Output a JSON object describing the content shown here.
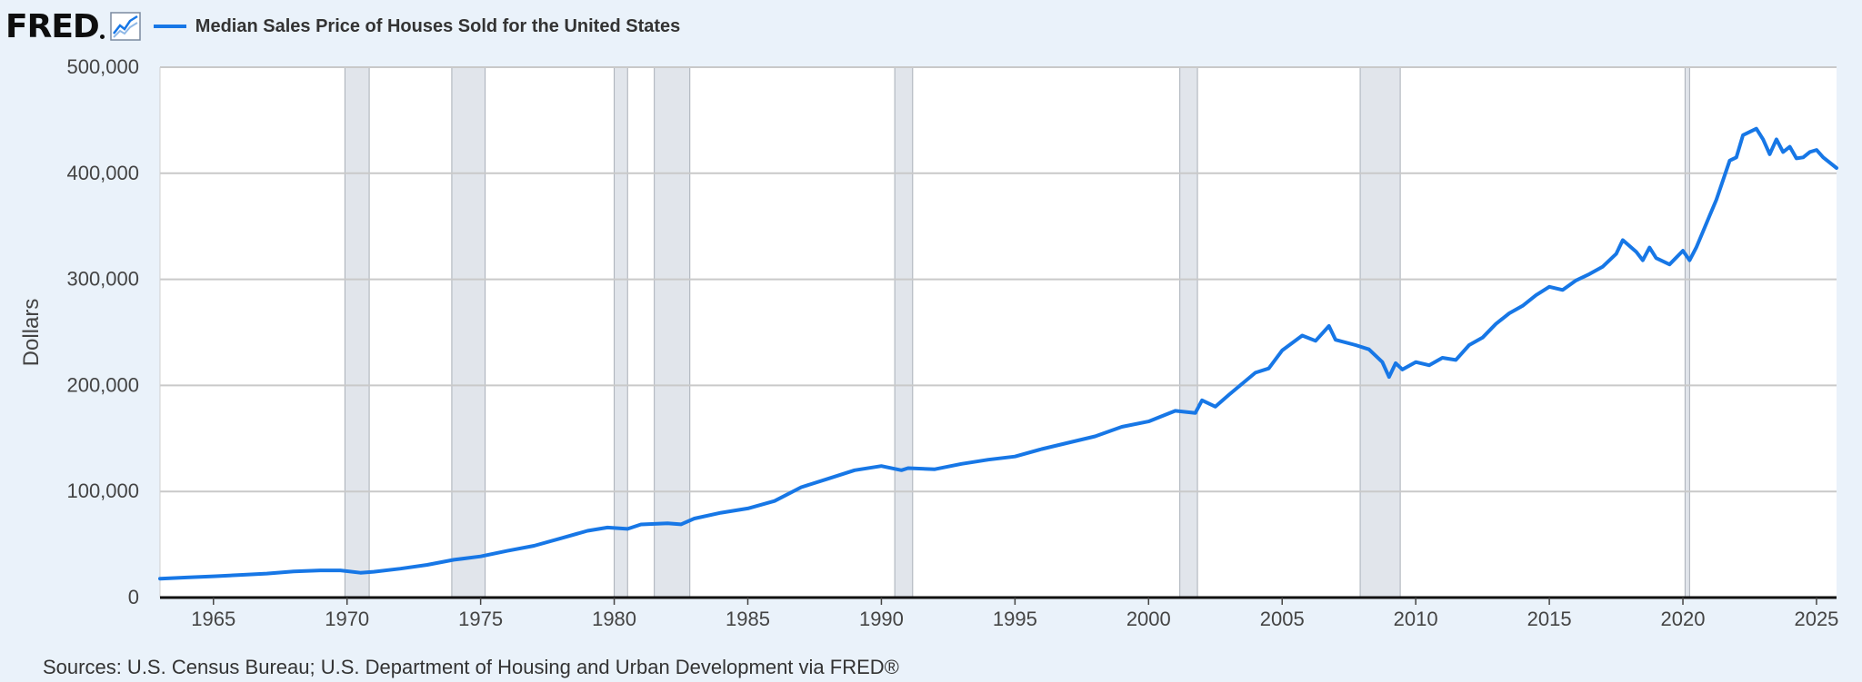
{
  "header": {
    "logo_text": "FRED",
    "logo_icon": "line-chart-icon"
  },
  "source_text": "Sources: U.S. Census Bureau; U.S. Department of Housing and Urban Development via FRED®",
  "colors": {
    "background": "#eaf2fa",
    "plot_background": "#ffffff",
    "series": "#1777e6",
    "recession": "#e1e5eb",
    "grid": "#c9c9c9",
    "text": "#333333"
  },
  "chart_data": {
    "type": "line",
    "title": "",
    "xlabel": "",
    "ylabel": "Dollars",
    "xlim": [
      1963.0,
      2025.75
    ],
    "ylim": [
      0,
      500000
    ],
    "grid": true,
    "legend": "top-left",
    "yticks": [
      0,
      100000,
      200000,
      300000,
      400000,
      500000
    ],
    "ytick_labels": [
      "0",
      "100,000",
      "200,000",
      "300,000",
      "400,000",
      "500,000"
    ],
    "xticks": [
      1965,
      1970,
      1975,
      1980,
      1985,
      1990,
      1995,
      2000,
      2005,
      2010,
      2015,
      2020,
      2025
    ],
    "xtick_labels": [
      "1965",
      "1970",
      "1975",
      "1980",
      "1985",
      "1990",
      "1995",
      "2000",
      "2005",
      "2010",
      "2015",
      "2020",
      "2025"
    ],
    "recessions": [
      [
        1969.92,
        1970.83
      ],
      [
        1973.92,
        1975.17
      ],
      [
        1980.0,
        1980.5
      ],
      [
        1981.5,
        1982.83
      ],
      [
        1990.5,
        1991.17
      ],
      [
        2001.17,
        2001.83
      ],
      [
        2007.92,
        2009.42
      ],
      [
        2020.08,
        2020.25
      ]
    ],
    "series": [
      {
        "name": "Median Sales Price of Houses Sold for the United States",
        "points": [
          [
            1963.0,
            17800
          ],
          [
            1964.0,
            18900
          ],
          [
            1965.0,
            20000
          ],
          [
            1966.0,
            21300
          ],
          [
            1967.0,
            22600
          ],
          [
            1968.0,
            24600
          ],
          [
            1969.0,
            25600
          ],
          [
            1969.75,
            25600
          ],
          [
            1970.5,
            23400
          ],
          [
            1971.0,
            24300
          ],
          [
            1972.0,
            27200
          ],
          [
            1973.0,
            30800
          ],
          [
            1974.0,
            35600
          ],
          [
            1975.0,
            38800
          ],
          [
            1976.0,
            44000
          ],
          [
            1977.0,
            48800
          ],
          [
            1978.0,
            55800
          ],
          [
            1979.0,
            62900
          ],
          [
            1979.75,
            66000
          ],
          [
            1980.5,
            64700
          ],
          [
            1981.0,
            68900
          ],
          [
            1982.0,
            70000
          ],
          [
            1982.5,
            69000
          ],
          [
            1983.0,
            74500
          ],
          [
            1984.0,
            80000
          ],
          [
            1985.0,
            84000
          ],
          [
            1986.0,
            91000
          ],
          [
            1987.0,
            104000
          ],
          [
            1988.0,
            112000
          ],
          [
            1989.0,
            120000
          ],
          [
            1990.0,
            124000
          ],
          [
            1990.75,
            120000
          ],
          [
            1991.0,
            122000
          ],
          [
            1992.0,
            121000
          ],
          [
            1993.0,
            126000
          ],
          [
            1994.0,
            130000
          ],
          [
            1995.0,
            133000
          ],
          [
            1996.0,
            140000
          ],
          [
            1997.0,
            146000
          ],
          [
            1998.0,
            152000
          ],
          [
            1999.0,
            161000
          ],
          [
            2000.0,
            166000
          ],
          [
            2001.0,
            176000
          ],
          [
            2001.75,
            174000
          ],
          [
            2002.0,
            186000
          ],
          [
            2002.5,
            180000
          ],
          [
            2003.0,
            191000
          ],
          [
            2004.0,
            212000
          ],
          [
            2004.5,
            216000
          ],
          [
            2005.0,
            233000
          ],
          [
            2005.75,
            247000
          ],
          [
            2006.25,
            242000
          ],
          [
            2006.75,
            256000
          ],
          [
            2007.0,
            243000
          ],
          [
            2007.75,
            238000
          ],
          [
            2008.25,
            234000
          ],
          [
            2008.75,
            222000
          ],
          [
            2009.0,
            208000
          ],
          [
            2009.25,
            221000
          ],
          [
            2009.5,
            215000
          ],
          [
            2010.0,
            222000
          ],
          [
            2010.5,
            219000
          ],
          [
            2011.0,
            226000
          ],
          [
            2011.5,
            224000
          ],
          [
            2012.0,
            238000
          ],
          [
            2012.5,
            245000
          ],
          [
            2013.0,
            258000
          ],
          [
            2013.5,
            268000
          ],
          [
            2014.0,
            275000
          ],
          [
            2014.5,
            285000
          ],
          [
            2015.0,
            293000
          ],
          [
            2015.5,
            290000
          ],
          [
            2016.0,
            299000
          ],
          [
            2016.5,
            305000
          ],
          [
            2017.0,
            312000
          ],
          [
            2017.5,
            324000
          ],
          [
            2017.75,
            337000
          ],
          [
            2018.25,
            326000
          ],
          [
            2018.5,
            318000
          ],
          [
            2018.75,
            330000
          ],
          [
            2019.0,
            320000
          ],
          [
            2019.5,
            314000
          ],
          [
            2020.0,
            327000
          ],
          [
            2020.25,
            318000
          ],
          [
            2020.5,
            330000
          ],
          [
            2020.75,
            345000
          ],
          [
            2021.0,
            360000
          ],
          [
            2021.25,
            375000
          ],
          [
            2021.75,
            412000
          ],
          [
            2022.0,
            415000
          ],
          [
            2022.25,
            436000
          ],
          [
            2022.75,
            442000
          ],
          [
            2023.0,
            432000
          ],
          [
            2023.25,
            418000
          ],
          [
            2023.5,
            432000
          ],
          [
            2023.75,
            420000
          ],
          [
            2024.0,
            425000
          ],
          [
            2024.25,
            414000
          ],
          [
            2024.5,
            415000
          ],
          [
            2024.75,
            420000
          ],
          [
            2025.0,
            422000
          ],
          [
            2025.25,
            415000
          ],
          [
            2025.75,
            405000
          ]
        ]
      }
    ]
  }
}
